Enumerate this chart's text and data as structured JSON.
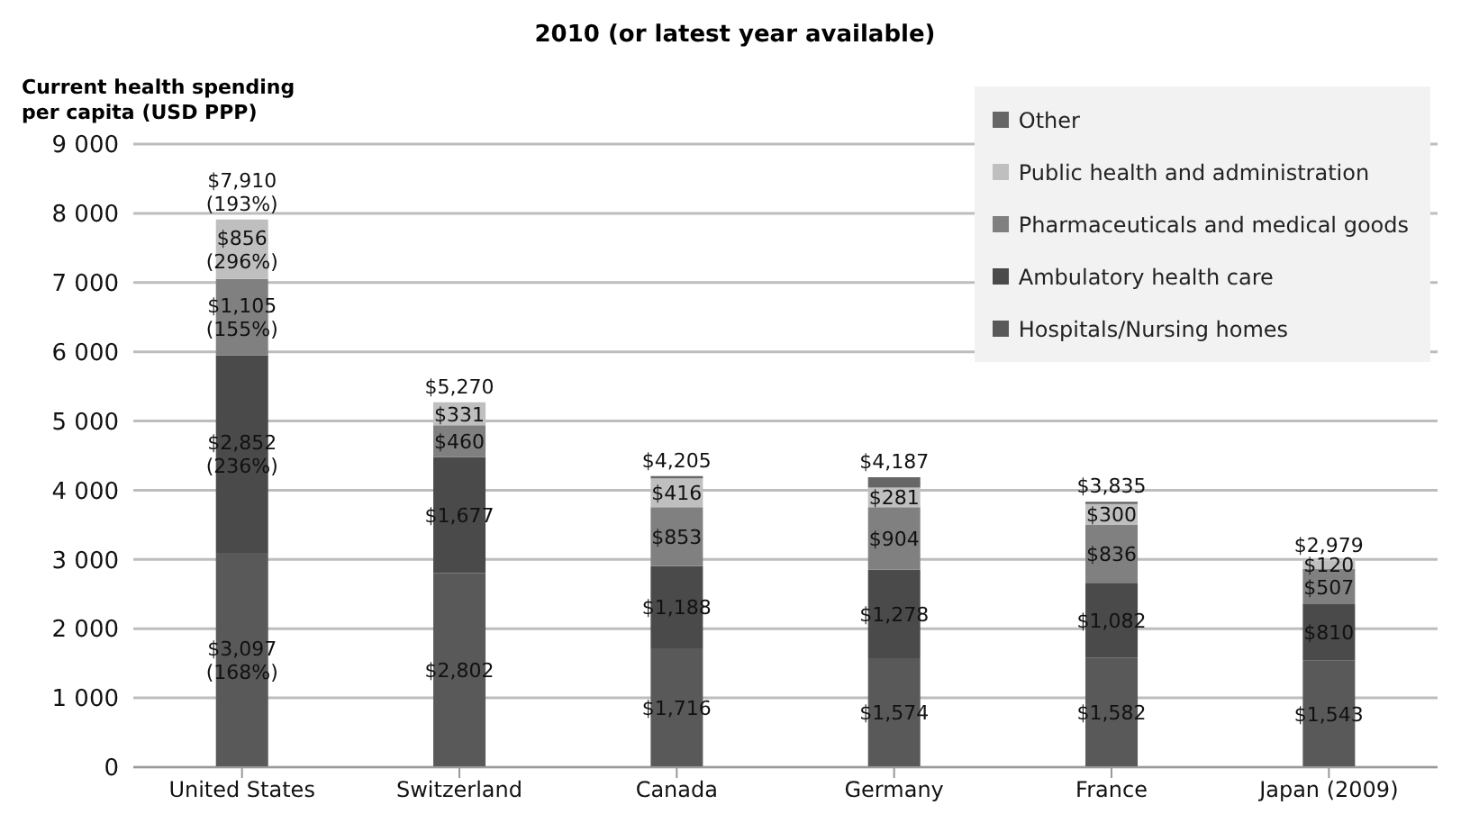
{
  "chart_data": {
    "type": "bar",
    "title": "2010 (or latest year available)",
    "ylabel": "Current health spending\nper capita (USD PPP)",
    "categories": [
      "United States",
      "Switzerland",
      "Canada",
      "Germany",
      "France",
      "Japan (2009)"
    ],
    "series": [
      {
        "name": "Hospitals/Nursing homes",
        "color": "#595959",
        "values": [
          3097,
          2802,
          1716,
          1574,
          1582,
          1543
        ],
        "value_labels": [
          "$3,097\n(168%)",
          "$2,802",
          "$1,716",
          "$1,574",
          "$1,582",
          "$1,543"
        ]
      },
      {
        "name": "Ambulatory health care",
        "color": "#4a4a4a",
        "values": [
          2852,
          1677,
          1188,
          1278,
          1082,
          810
        ],
        "value_labels": [
          "$2,852\n(236%)",
          "$1,677",
          "$1,188",
          "$1,278",
          "$1,082",
          "$810"
        ]
      },
      {
        "name": "Pharmaceuticals and medical goods",
        "color": "#808080",
        "values": [
          1105,
          460,
          853,
          904,
          836,
          507
        ],
        "value_labels": [
          "$1,105\n(155%)",
          "$460",
          "$853",
          "$904",
          "$836",
          "$507"
        ]
      },
      {
        "name": "Public health and administration",
        "color": "#bfbfbf",
        "values": [
          856,
          331,
          416,
          281,
          300,
          120
        ],
        "value_labels": [
          "$856\n(296%)",
          "$331",
          "$416",
          "$281",
          "$300",
          "$120"
        ]
      },
      {
        "name": "Other",
        "color": "#666666",
        "values": [
          0,
          0,
          32,
          150,
          35,
          0
        ],
        "value_labels": [
          null,
          null,
          null,
          null,
          null,
          null
        ]
      }
    ],
    "stacked": true,
    "totals": [
      "$7,910\n(193%)",
      "$5,270",
      "$4,205",
      "$4,187",
      "$3,835",
      "$2,979"
    ],
    "ylim": [
      0,
      9000
    ],
    "yticks": [
      0,
      {
        "value": 1000,
        "label": "1 000"
      },
      {
        "value": 2000,
        "label": "2 000"
      },
      {
        "value": 3000,
        "label": "3 000"
      },
      {
        "value": 4000,
        "label": "4 000"
      },
      {
        "value": 5000,
        "label": "5 000"
      },
      {
        "value": 6000,
        "label": "6 000"
      },
      {
        "value": 7000,
        "label": "7 000"
      },
      {
        "value": 8000,
        "label": "8 000"
      },
      {
        "value": 9000,
        "label": "9 000"
      }
    ],
    "grid": "y",
    "legend": "top right"
  }
}
